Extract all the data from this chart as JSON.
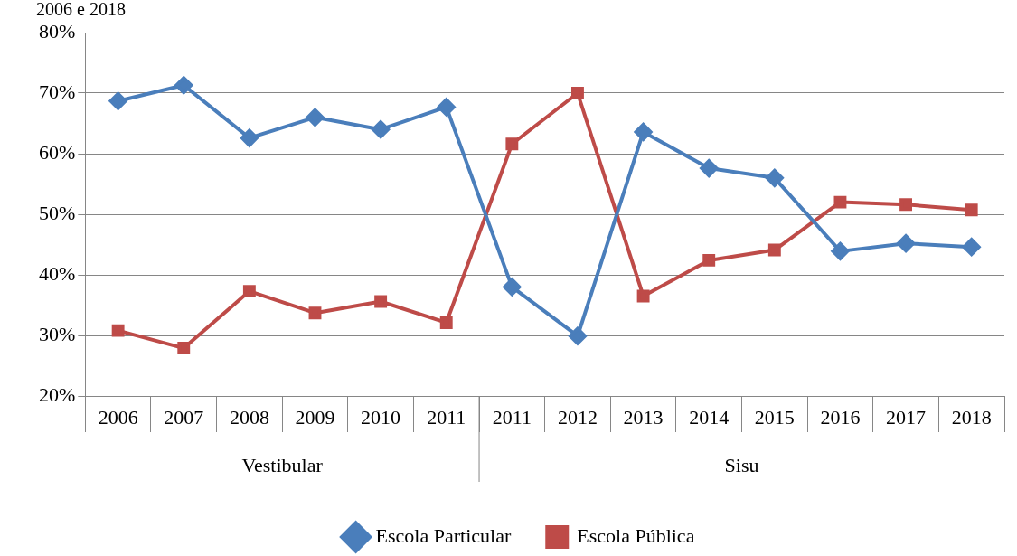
{
  "chart_data": {
    "type": "line",
    "title": "2006 e 2018",
    "categories": [
      "2006",
      "2007",
      "2008",
      "2009",
      "2010",
      "2011",
      "2011",
      "2012",
      "2013",
      "2014",
      "2015",
      "2016",
      "2017",
      "2018"
    ],
    "annotations": [
      "Vestibular",
      "Sisu"
    ],
    "series": [
      {
        "name": "Escola Particular",
        "color": "#4a7ebb",
        "marker": "diamond",
        "values": [
          68.7,
          71.3,
          62.6,
          66.0,
          64.0,
          67.7,
          38.0,
          29.9,
          63.6,
          57.6,
          56.0,
          43.9,
          45.2,
          44.6
        ]
      },
      {
        "name": "Escola Pública",
        "color": "#be4b48",
        "marker": "square",
        "values": [
          30.8,
          27.9,
          37.3,
          33.7,
          35.6,
          32.1,
          61.6,
          70.0,
          36.5,
          42.4,
          44.1,
          52.0,
          51.6,
          50.7
        ]
      }
    ],
    "ylim": [
      20,
      80
    ],
    "yticks": [
      {
        "value": 20,
        "label": "20%"
      },
      {
        "value": 30,
        "label": "30%"
      },
      {
        "value": 40,
        "label": "40%"
      },
      {
        "value": 50,
        "label": "50%"
      },
      {
        "value": 60,
        "label": "60%"
      },
      {
        "value": 70,
        "label": "70%"
      },
      {
        "value": 80,
        "label": "80%"
      }
    ],
    "grid": "y",
    "legend": "bottom",
    "line_style": "solid"
  }
}
